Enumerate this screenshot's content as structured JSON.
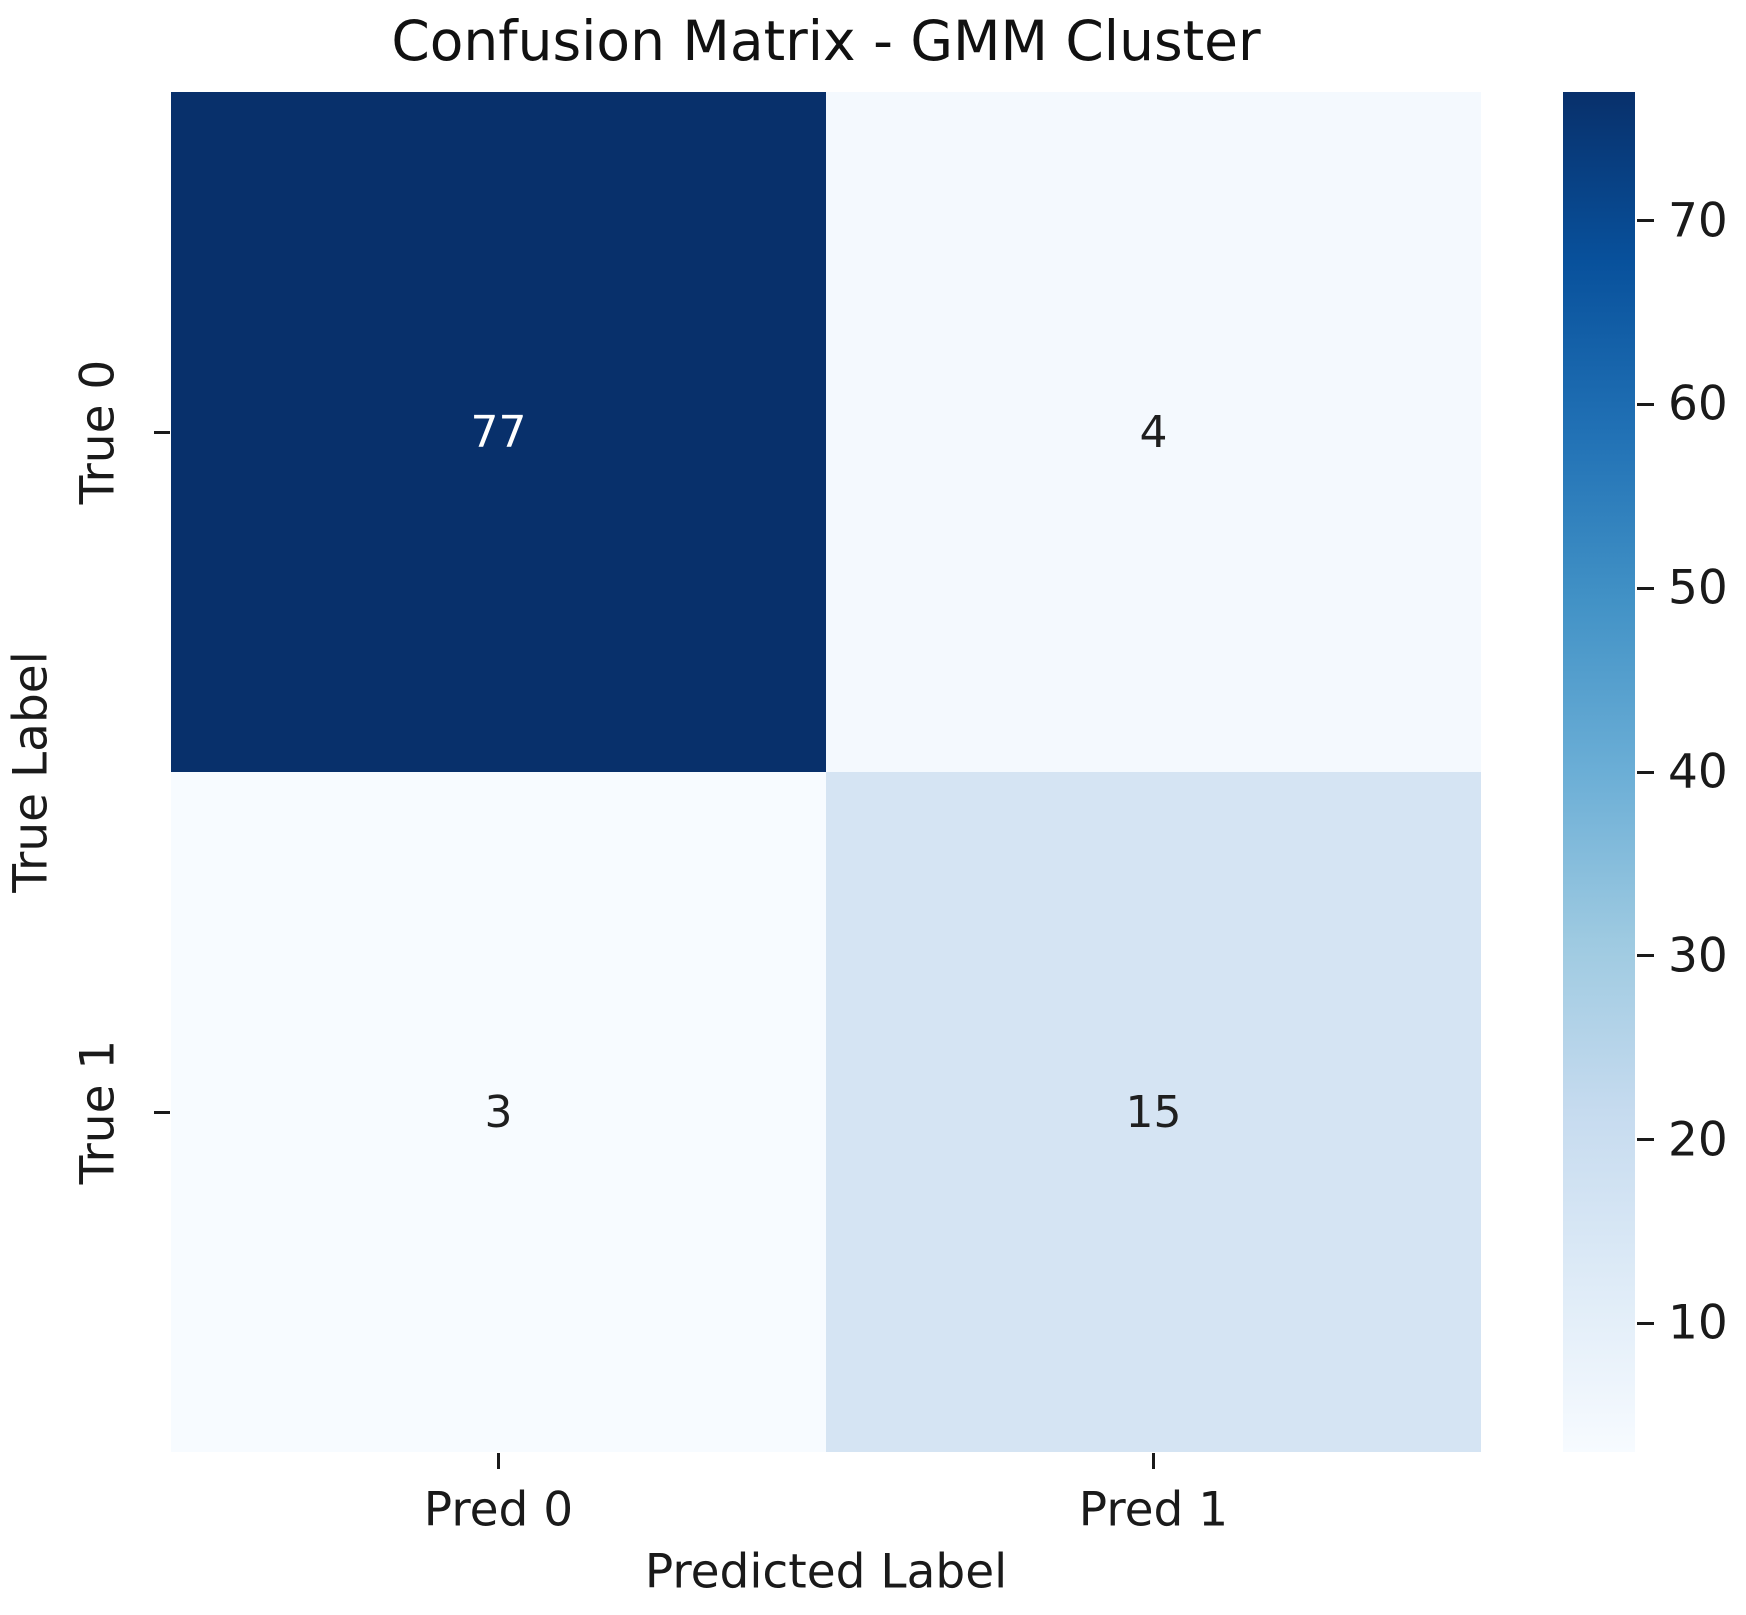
{
  "title": "Confusion Matrix - GMM Cluster",
  "chart_data": {
    "type": "heatmap",
    "title": "Confusion Matrix - GMM Cluster",
    "xlabel": "Predicted Label",
    "ylabel": "True Label",
    "x_categories": [
      "Pred 0",
      "Pred 1"
    ],
    "y_categories": [
      "True 0",
      "True 1"
    ],
    "matrix": [
      [
        77,
        4
      ],
      [
        3,
        15
      ]
    ],
    "annotations": [
      [
        "77",
        "4"
      ],
      [
        "3",
        "15"
      ]
    ],
    "colormap": "Blues",
    "vmin": 3,
    "vmax": 77,
    "colorbar_ticks": [
      70,
      60,
      50,
      40,
      30,
      20,
      10
    ],
    "colorbar_position": "right",
    "grid": false,
    "cell_colors": [
      [
        "#08306b",
        "#f4f9fe"
      ],
      [
        "#f7fbff",
        "#d5e4f3"
      ]
    ],
    "cell_text_colors": [
      [
        "#ffffff",
        "#1f1f1f"
      ],
      [
        "#1f1f1f",
        "#1f1f1f"
      ]
    ],
    "colormap_stops": [
      "#f7fbff",
      "#deebf7",
      "#c6dbef",
      "#9ecae1",
      "#6baed6",
      "#4292c6",
      "#2171b5",
      "#08519c",
      "#08306b"
    ]
  },
  "colors": {
    "background": "#ffffff",
    "text": "#1a1a1a",
    "colormap_min": "#f7fbff",
    "colormap_max": "#08306b"
  }
}
